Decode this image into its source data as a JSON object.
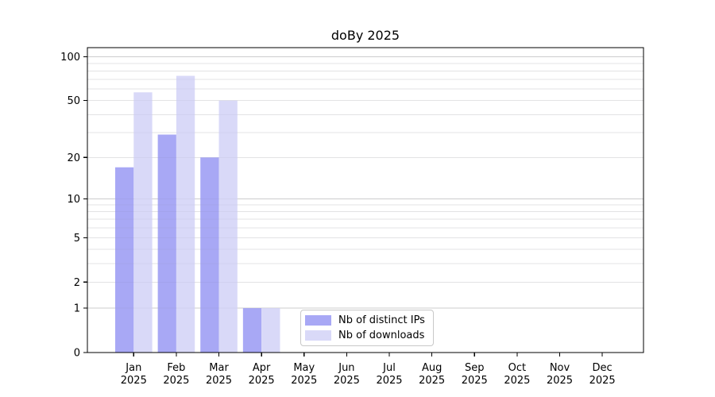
{
  "page": {
    "background": "#ffffff"
  },
  "chart_data": {
    "type": "bar",
    "title": "doBy 2025",
    "categories": [
      "Jan",
      "Feb",
      "Mar",
      "Apr",
      "May",
      "Jun",
      "Jul",
      "Aug",
      "Sep",
      "Oct",
      "Nov",
      "Dec"
    ],
    "x_label_line2": "2025",
    "series": [
      {
        "name": "Nb of distinct IPs",
        "color": "#a8a8f5",
        "values": [
          17,
          29,
          20,
          1,
          0,
          0,
          0,
          0,
          0,
          0,
          0,
          0
        ]
      },
      {
        "name": "Nb of downloads",
        "color": "#d9d9f8",
        "values": [
          57,
          74,
          50,
          1,
          0,
          0,
          0,
          0,
          0,
          0,
          0,
          0
        ]
      }
    ],
    "y_axis": {
      "scale": "log1p",
      "tick_values": [
        0,
        1,
        2,
        5,
        10,
        20,
        50,
        100
      ],
      "minor_gridline_values": [
        1,
        2,
        3,
        4,
        5,
        6,
        7,
        8,
        9,
        10,
        20,
        30,
        40,
        50,
        60,
        70,
        80,
        90,
        100
      ],
      "emphasized_gridline_values": [
        1,
        10,
        100
      ],
      "top_value": 116
    },
    "legend": {
      "position": "lower-center"
    },
    "grid": true,
    "colors": {
      "grid_minor": "#ececec",
      "grid_major": "#d4d4d4",
      "axis": "#000000",
      "text": "#000000"
    }
  }
}
